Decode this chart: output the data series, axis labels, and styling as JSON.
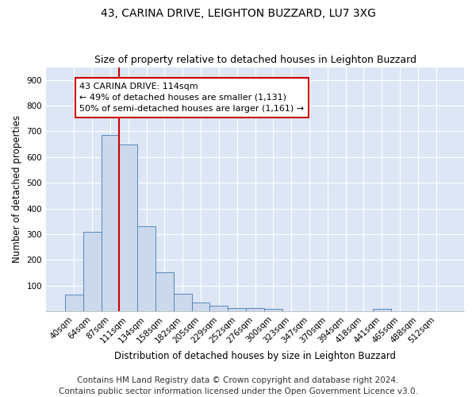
{
  "title": "43, CARINA DRIVE, LEIGHTON BUZZARD, LU7 3XG",
  "subtitle": "Size of property relative to detached houses in Leighton Buzzard",
  "xlabel": "Distribution of detached houses by size in Leighton Buzzard",
  "ylabel": "Number of detached properties",
  "footer_line1": "Contains HM Land Registry data © Crown copyright and database right 2024.",
  "footer_line2": "Contains public sector information licensed under the Open Government Licence v3.0.",
  "categories": [
    "40sqm",
    "64sqm",
    "87sqm",
    "111sqm",
    "134sqm",
    "158sqm",
    "182sqm",
    "205sqm",
    "229sqm",
    "252sqm",
    "276sqm",
    "300sqm",
    "323sqm",
    "347sqm",
    "370sqm",
    "394sqm",
    "418sqm",
    "441sqm",
    "465sqm",
    "488sqm",
    "512sqm"
  ],
  "values": [
    65,
    310,
    685,
    650,
    330,
    152,
    68,
    35,
    20,
    12,
    12,
    8,
    0,
    0,
    0,
    0,
    0,
    10,
    0,
    0,
    0
  ],
  "bar_color": "#ccd9ec",
  "bar_edge_color": "#5588bb",
  "vline_color": "#cc0000",
  "vline_index": 3,
  "annotation_text": "43 CARINA DRIVE: 114sqm\n← 49% of detached houses are smaller (1,131)\n50% of semi-detached houses are larger (1,161) →",
  "annotation_box_color": "#ffffff",
  "annotation_box_edge": "#cc0000",
  "ylim_max": 950,
  "yticks": [
    100,
    200,
    300,
    400,
    500,
    600,
    700,
    800,
    900
  ],
  "plot_bg_color": "#dce6f5",
  "fig_bg_color": "#ffffff",
  "grid_color": "#ffffff",
  "title_fontsize": 10,
  "subtitle_fontsize": 9,
  "axis_label_fontsize": 8.5,
  "tick_fontsize": 7.5,
  "footer_fontsize": 7.5,
  "annotation_fontsize": 8
}
